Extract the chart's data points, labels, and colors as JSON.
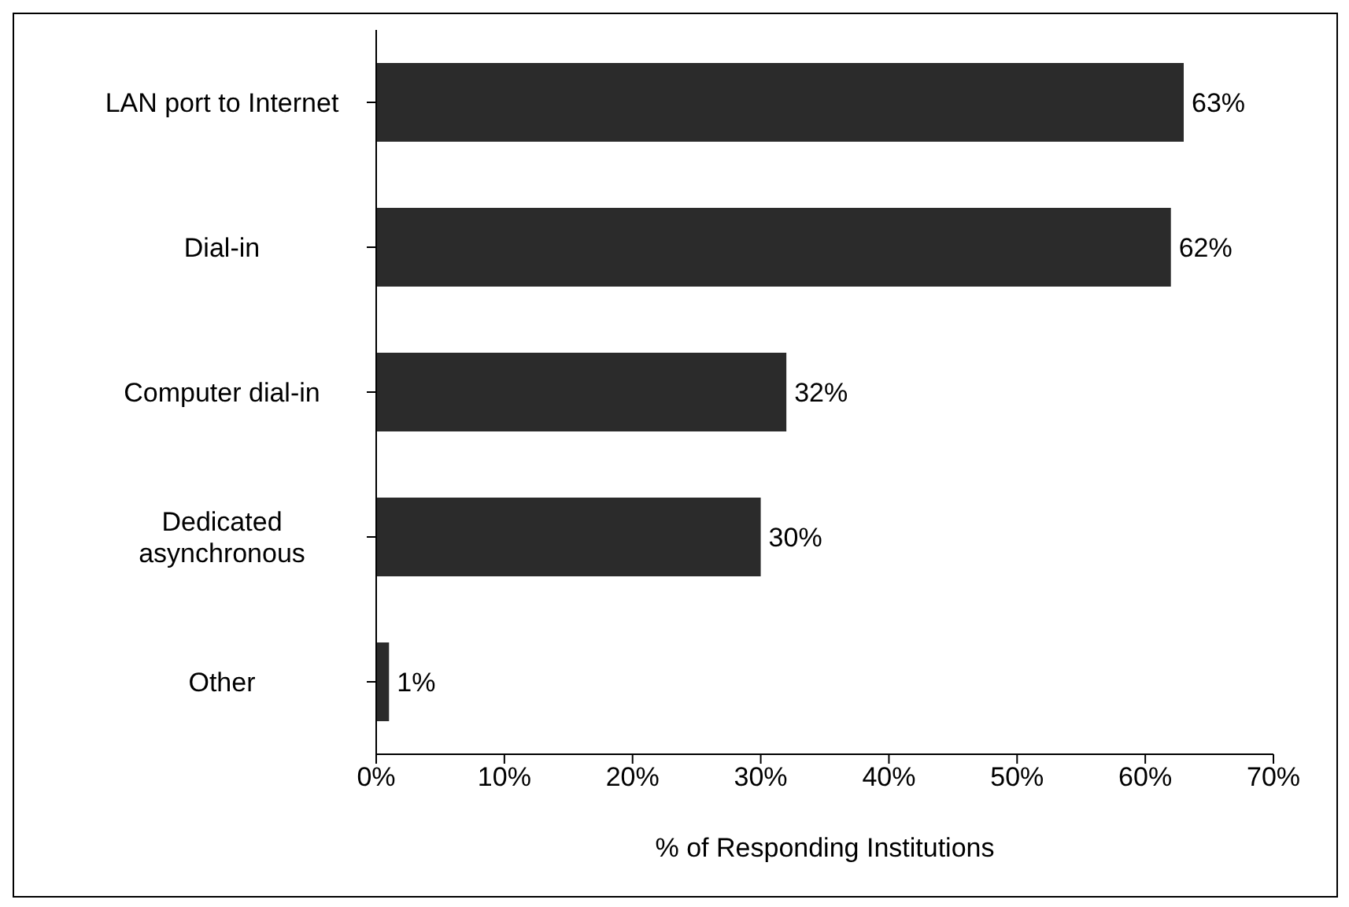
{
  "chart_data": {
    "type": "bar",
    "orientation": "horizontal",
    "xlabel": "% of Responding Institutions",
    "categories": [
      "LAN port to Internet",
      "Dial-in",
      "Computer dial-in",
      "Dedicated asynchronous",
      "Other"
    ],
    "values": [
      63,
      62,
      32,
      30,
      1
    ],
    "value_labels": [
      "63%",
      "62%",
      "32%",
      "30%",
      "1%"
    ],
    "color": "#2b2b2b",
    "xlim": [
      0,
      70
    ],
    "xticks": [
      {
        "value": 0,
        "label": "0%"
      },
      {
        "value": 10,
        "label": "10%"
      },
      {
        "value": 20,
        "label": "20%"
      },
      {
        "value": 30,
        "label": "30%"
      },
      {
        "value": 40,
        "label": "40%"
      },
      {
        "value": 50,
        "label": "50%"
      },
      {
        "value": 60,
        "label": "60%"
      },
      {
        "value": 70,
        "label": "70%"
      }
    ],
    "grid": false,
    "legend": false
  }
}
